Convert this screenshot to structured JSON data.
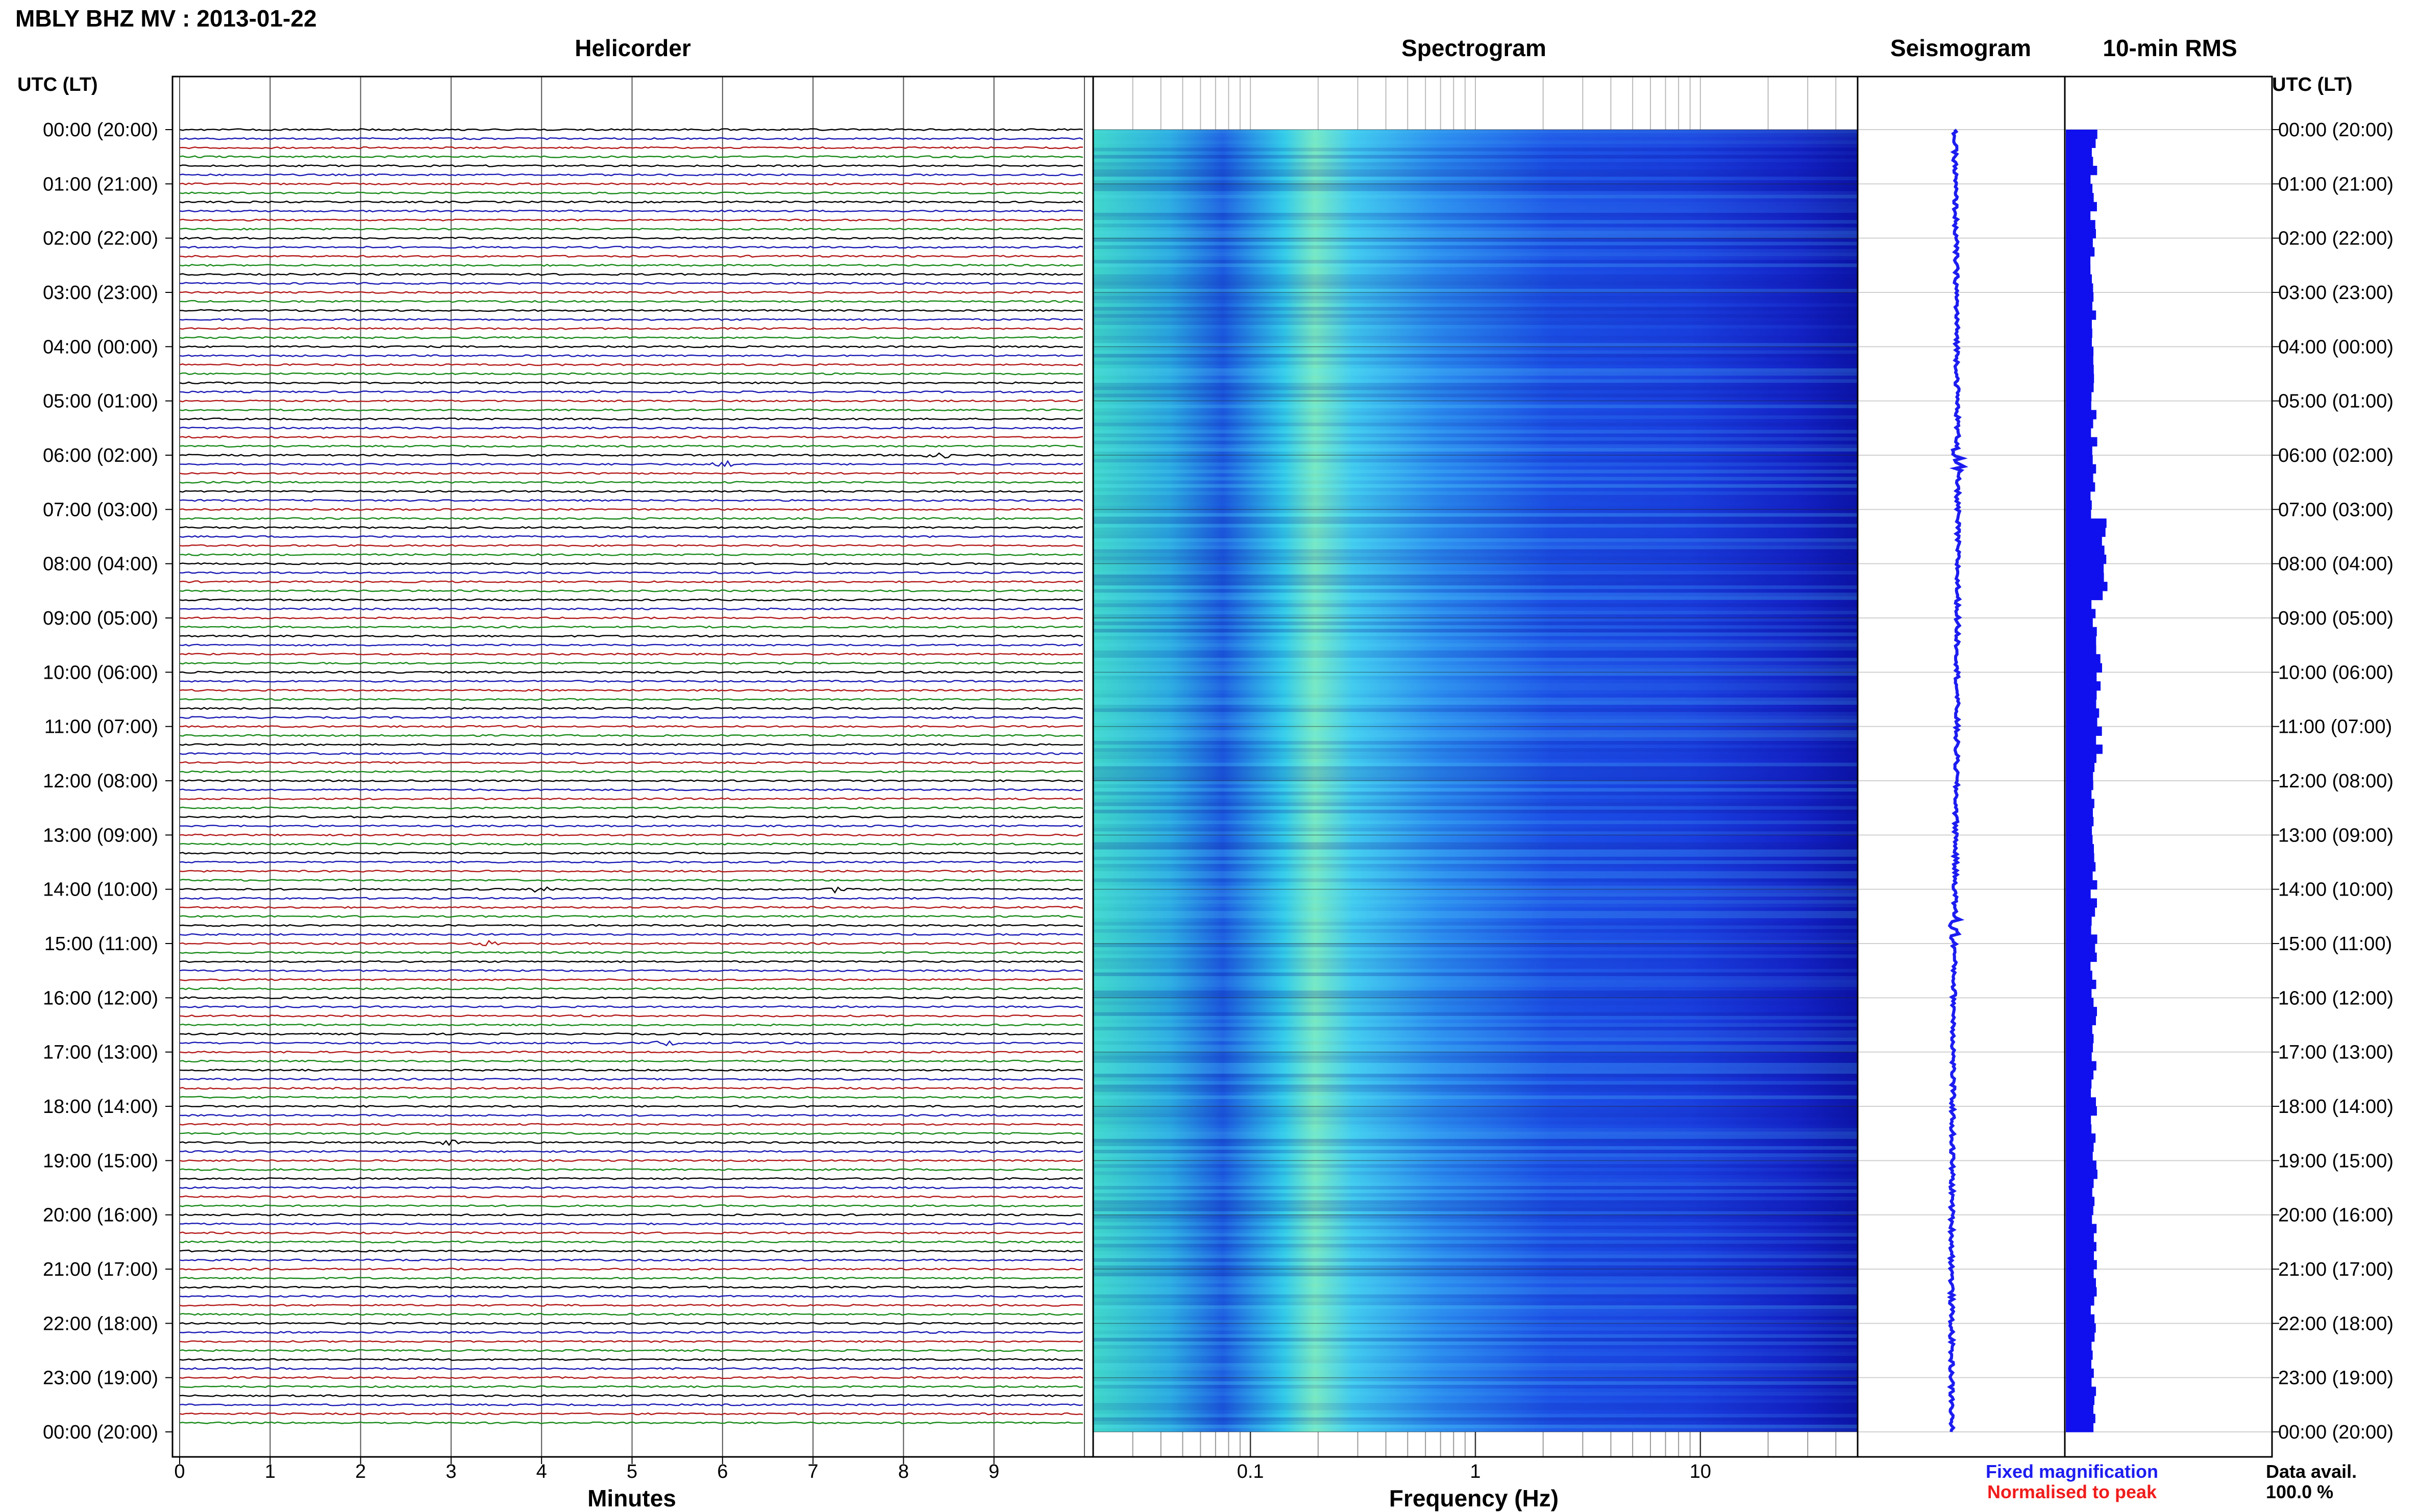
{
  "page_title": "MBLY BHZ MV : 2013-01-22",
  "time_axis_label": "UTC (LT)",
  "panels": {
    "helicorder": "Helicorder",
    "spectrogram": "Spectrogram",
    "seismogram": "Seismogram",
    "rms": "10-min RMS"
  },
  "time_ticks": [
    "00:00 (20:00)",
    "01:00 (21:00)",
    "02:00 (22:00)",
    "03:00 (23:00)",
    "04:00 (00:00)",
    "05:00 (01:00)",
    "06:00 (02:00)",
    "07:00 (03:00)",
    "08:00 (04:00)",
    "09:00 (05:00)",
    "10:00 (06:00)",
    "11:00 (07:00)",
    "12:00 (08:00)",
    "13:00 (09:00)",
    "14:00 (10:00)",
    "15:00 (11:00)",
    "16:00 (12:00)",
    "17:00 (13:00)",
    "18:00 (14:00)",
    "19:00 (15:00)",
    "20:00 (16:00)",
    "21:00 (17:00)",
    "22:00 (18:00)",
    "23:00 (19:00)",
    "00:00 (20:00)"
  ],
  "helicorder_axis": {
    "label": "Minutes",
    "ticks": [
      "0",
      "1",
      "2",
      "3",
      "4",
      "5",
      "6",
      "7",
      "8",
      "9"
    ]
  },
  "spectrogram_axis": {
    "label": "Frequency (Hz)",
    "ticks": [
      "0.1",
      "1",
      "10"
    ],
    "scale": "log"
  },
  "legend": {
    "fixed": "Fixed magnification",
    "normalised": "Normalised to peak",
    "fixed_color": "#1c1cf0",
    "normalised_color": "#f01c1c"
  },
  "data_availability": {
    "label": "Data avail.",
    "value": "100.0 %"
  },
  "colors": {
    "trace_cycle": [
      "#000000",
      "#1a1ab4",
      "#b41a1a",
      "#1a8a1a"
    ],
    "seismogram": "#1c1cf0",
    "rms": "#1010ee",
    "spectrogram_low": "#1010c8",
    "spectrogram_high": "#40ffd0"
  },
  "chart_data": [
    {
      "type": "line",
      "name": "helicorder",
      "x_unit": "minutes",
      "xlim": [
        0,
        10
      ],
      "rows": 144,
      "row_minutes": 10,
      "events": [
        {
          "time": "06:00",
          "minute": 8.4
        },
        {
          "time": "06:10",
          "minute": 6.0
        },
        {
          "time": "14:00",
          "minute": 4.0
        },
        {
          "time": "14:00",
          "minute": 7.2
        },
        {
          "time": "15:00",
          "minute": 3.4
        },
        {
          "time": "16:50",
          "minute": 5.4
        },
        {
          "time": "18:40",
          "minute": 3.0
        }
      ]
    },
    {
      "type": "heatmap",
      "name": "spectrogram",
      "x_unit": "Hz",
      "xscale": "log",
      "xlim": [
        0.02,
        50
      ],
      "y": "time",
      "energy_band_hz": [
        0.15,
        0.4
      ]
    },
    {
      "type": "line",
      "name": "seismogram",
      "y": "time"
    },
    {
      "type": "bar",
      "name": "10-min RMS",
      "bins": 144,
      "peak_time": "08:00"
    }
  ]
}
